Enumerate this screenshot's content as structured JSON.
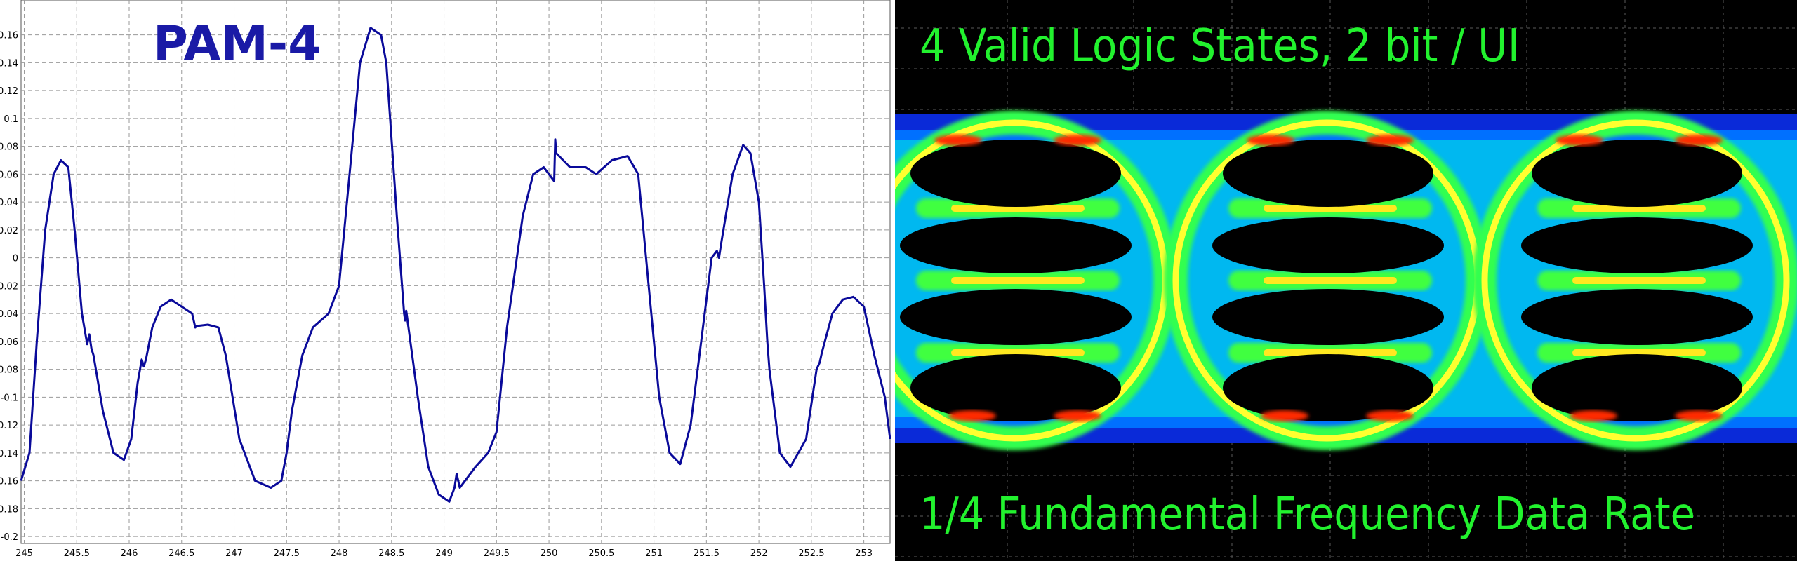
{
  "colors": {
    "line": "#0a0a9a",
    "grid": "#9a9a9a",
    "title": "#1a1aa6",
    "caption": "#22f22e"
  },
  "chart_data": [
    {
      "type": "line",
      "title": "PAM-4",
      "xlabel": "",
      "ylabel": "",
      "xlim": [
        244.97,
        253.25
      ],
      "ylim": [
        -0.205,
        0.185
      ],
      "grid": true,
      "xticks": [
        245,
        245.5,
        246,
        246.5,
        247,
        247.5,
        248,
        248.5,
        249,
        249.5,
        250,
        250.5,
        251,
        251.5,
        252,
        252.5,
        253
      ],
      "xtick_labels": [
        "245",
        "245.5",
        "246",
        "246.5",
        "247",
        "247.5",
        "248",
        "248.5",
        "249",
        "249.5",
        "250",
        "250.5",
        "251",
        "251.5",
        "252",
        "252.5",
        "253"
      ],
      "yticks": [
        0.16,
        0.14,
        0.12,
        0.1,
        0.08,
        0.06,
        0.04,
        0.02,
        0,
        -0.02,
        -0.04,
        -0.06,
        -0.08,
        -0.1,
        -0.12,
        -0.14,
        -0.16,
        -0.18,
        -0.2
      ],
      "ytick_labels": [
        "0.16",
        "0.14",
        "0.12",
        "0.1",
        "0.08",
        "0.06",
        "0.04",
        "0.02",
        "0",
        "-0.02",
        "-0.04",
        "-0.06",
        "-0.08",
        "-0.1",
        "-0.12",
        "-0.14",
        "-0.16",
        "-0.18",
        "-0.2"
      ],
      "series": [
        {
          "x": [
            244.97,
            245.05,
            245.12,
            245.2,
            245.28,
            245.35,
            245.42,
            245.48,
            245.55,
            245.6,
            245.62,
            245.64,
            245.66,
            245.75,
            245.85,
            245.95,
            246.02,
            246.08,
            246.12,
            246.14,
            246.16,
            246.22,
            246.3,
            246.4,
            246.5,
            246.6,
            246.63,
            246.64,
            246.75,
            246.85,
            246.92,
            247.05,
            247.2,
            247.35,
            247.45,
            247.5,
            247.55,
            247.65,
            247.75,
            247.9,
            248.0,
            248.1,
            248.2,
            248.3,
            248.4,
            248.45,
            248.55,
            248.62,
            248.63,
            248.64,
            248.75,
            248.85,
            248.95,
            249.05,
            249.1,
            249.12,
            249.15,
            249.3,
            249.42,
            249.5,
            249.6,
            249.75,
            249.85,
            249.95,
            250.05,
            250.06,
            250.07,
            250.2,
            250.35,
            250.45,
            250.6,
            250.75,
            250.85,
            250.95,
            251.05,
            251.15,
            251.25,
            251.35,
            251.45,
            251.55,
            251.6,
            251.62,
            251.64,
            251.75,
            251.85,
            251.92,
            252.0,
            252.05,
            252.08,
            252.1,
            252.2,
            252.3,
            252.45,
            252.55,
            252.58,
            252.6,
            252.7,
            252.8,
            252.9,
            253.0,
            253.1,
            253.2,
            253.25
          ],
          "y": [
            -0.16,
            -0.14,
            -0.06,
            0.02,
            0.06,
            0.07,
            0.065,
            0.02,
            -0.04,
            -0.062,
            -0.055,
            -0.065,
            -0.07,
            -0.11,
            -0.14,
            -0.145,
            -0.13,
            -0.09,
            -0.073,
            -0.078,
            -0.073,
            -0.05,
            -0.035,
            -0.03,
            -0.035,
            -0.04,
            -0.05,
            -0.049,
            -0.048,
            -0.05,
            -0.07,
            -0.13,
            -0.16,
            -0.165,
            -0.16,
            -0.14,
            -0.11,
            -0.07,
            -0.05,
            -0.04,
            -0.02,
            0.06,
            0.14,
            0.165,
            0.16,
            0.14,
            0.03,
            -0.04,
            -0.045,
            -0.038,
            -0.1,
            -0.15,
            -0.17,
            -0.175,
            -0.165,
            -0.155,
            -0.165,
            -0.15,
            -0.14,
            -0.125,
            -0.05,
            0.03,
            0.06,
            0.065,
            0.055,
            0.085,
            0.075,
            0.065,
            0.065,
            0.06,
            0.07,
            0.073,
            0.06,
            -0.02,
            -0.1,
            -0.14,
            -0.148,
            -0.12,
            -0.06,
            0.0,
            0.005,
            0.0,
            0.01,
            0.06,
            0.081,
            0.075,
            0.04,
            -0.02,
            -0.06,
            -0.08,
            -0.14,
            -0.15,
            -0.13,
            -0.08,
            -0.075,
            -0.068,
            -0.04,
            -0.03,
            -0.028,
            -0.035,
            -0.07,
            -0.1,
            -0.13
          ]
        }
      ]
    },
    {
      "type": "heatmap",
      "title": "4 Valid Logic States, 2 bit   / UI",
      "subtitle": "1/4 Fundamental Frequency Data Rate",
      "colormap": [
        "#0000c0",
        "#0060ff",
        "#00d8ff",
        "#20ff40",
        "#ffff00",
        "#ff2000"
      ],
      "eye_levels": 4,
      "eye_openings": 3,
      "unit_intervals_shown": 2
    }
  ]
}
